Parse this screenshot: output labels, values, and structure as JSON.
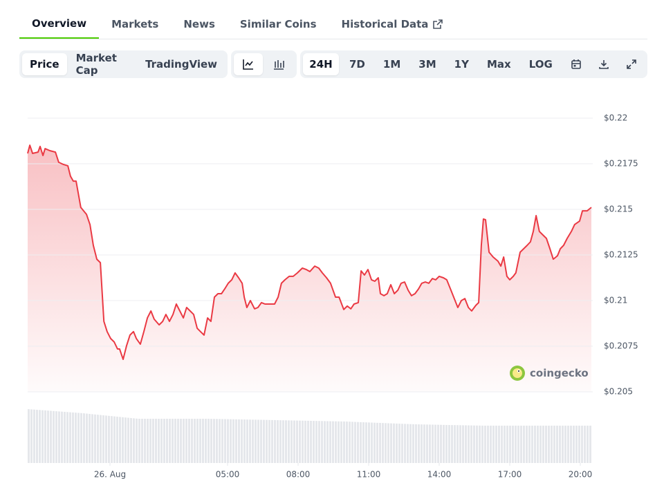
{
  "tabs": [
    "Overview",
    "Markets",
    "News",
    "Similar Coins",
    "Historical Data"
  ],
  "active_tab": 0,
  "chart_views": [
    "Price",
    "Market Cap",
    "TradingView"
  ],
  "active_view": 0,
  "ranges": [
    "24H",
    "7D",
    "1M",
    "3M",
    "1Y",
    "Max",
    "LOG"
  ],
  "active_range": 0,
  "watermark": "coingecko",
  "chart_data": {
    "type": "line",
    "color": "#ea3943",
    "grid": true,
    "xlim": [
      -3.5,
      20.5
    ],
    "xticks": [
      {
        "value": 0,
        "label": "26. Aug"
      },
      {
        "value": 5,
        "label": "05:00"
      },
      {
        "value": 8,
        "label": "08:00"
      },
      {
        "value": 11,
        "label": "11:00"
      },
      {
        "value": 14,
        "label": "14:00"
      },
      {
        "value": 17,
        "label": "17:00"
      },
      {
        "value": 20,
        "label": "20:00"
      }
    ],
    "ylim": [
      0.205,
      0.22
    ],
    "yticks": [
      {
        "value": 0.22,
        "label": "$0.22"
      },
      {
        "value": 0.2175,
        "label": "$0.2175"
      },
      {
        "value": 0.215,
        "label": "$0.215"
      },
      {
        "value": 0.2125,
        "label": "$0.2125"
      },
      {
        "value": 0.21,
        "label": "$0.21"
      },
      {
        "value": 0.2075,
        "label": "$0.2075"
      },
      {
        "value": 0.205,
        "label": "$0.205"
      }
    ],
    "x": [
      -3.5,
      -3.41,
      -3.29,
      -3.06,
      -2.97,
      -2.85,
      -2.76,
      -2.56,
      -2.32,
      -2.18,
      -1.97,
      -1.79,
      -1.68,
      -1.56,
      -1.44,
      -1.24,
      -1.0,
      -0.85,
      -0.71,
      -0.56,
      -0.41,
      -0.26,
      -0.12,
      0.03,
      0.18,
      0.32,
      0.41,
      0.56,
      0.71,
      0.85,
      1.0,
      1.12,
      1.29,
      1.44,
      1.59,
      1.74,
      1.88,
      2.09,
      2.24,
      2.38,
      2.53,
      2.68,
      2.82,
      2.97,
      3.12,
      3.26,
      3.41,
      3.56,
      3.71,
      3.85,
      4.0,
      4.15,
      4.29,
      4.44,
      4.59,
      4.74,
      4.88,
      5.03,
      5.18,
      5.32,
      5.47,
      5.62,
      5.71,
      5.82,
      5.97,
      6.15,
      6.29,
      6.44,
      6.59,
      6.79,
      7.0,
      7.15,
      7.29,
      7.44,
      7.62,
      7.79,
      7.97,
      8.18,
      8.35,
      8.5,
      8.71,
      8.88,
      9.03,
      9.21,
      9.38,
      9.59,
      9.74,
      9.94,
      10.09,
      10.24,
      10.38,
      10.56,
      10.68,
      10.82,
      10.97,
      11.12,
      11.26,
      11.41,
      11.5,
      11.65,
      11.79,
      11.94,
      12.09,
      12.24,
      12.38,
      12.53,
      12.68,
      12.82,
      12.97,
      13.12,
      13.26,
      13.41,
      13.56,
      13.71,
      13.85,
      14.0,
      14.18,
      14.32,
      14.5,
      14.65,
      14.79,
      14.94,
      15.09,
      15.24,
      15.38,
      15.56,
      15.68,
      15.79,
      15.88,
      15.97,
      16.12,
      16.29,
      16.5,
      16.62,
      16.74,
      16.88,
      17.0,
      17.15,
      17.26,
      17.44,
      17.59,
      17.74,
      17.88,
      18.0,
      18.12,
      18.26,
      18.41,
      18.56,
      18.71,
      18.85,
      19.03,
      19.15,
      19.29,
      19.44,
      19.62,
      19.76,
      19.97,
      20.09,
      20.29,
      20.47
    ],
    "values": [
      0.21807,
      0.21852,
      0.21807,
      0.21814,
      0.21845,
      0.21795,
      0.21833,
      0.21822,
      0.21814,
      0.21758,
      0.21746,
      0.21739,
      0.21682,
      0.21655,
      0.21655,
      0.21511,
      0.21473,
      0.21417,
      0.21303,
      0.21227,
      0.21208,
      0.20886,
      0.2083,
      0.20792,
      0.20773,
      0.20735,
      0.20735,
      0.20678,
      0.20754,
      0.20811,
      0.2083,
      0.20792,
      0.20761,
      0.2083,
      0.20905,
      0.20943,
      0.20898,
      0.20867,
      0.20886,
      0.20924,
      0.20886,
      0.20924,
      0.20981,
      0.20943,
      0.20905,
      0.20962,
      0.20943,
      0.20924,
      0.20848,
      0.2083,
      0.20811,
      0.20905,
      0.20886,
      0.21019,
      0.21038,
      0.21038,
      0.21064,
      0.21095,
      0.21114,
      0.21152,
      0.21125,
      0.21095,
      0.21019,
      0.20962,
      0.21,
      0.20955,
      0.20962,
      0.20989,
      0.20981,
      0.20981,
      0.20981,
      0.21019,
      0.21095,
      0.21114,
      0.21133,
      0.21133,
      0.21152,
      0.21178,
      0.2117,
      0.21159,
      0.21189,
      0.21178,
      0.21152,
      0.21125,
      0.21095,
      0.21019,
      0.21019,
      0.20951,
      0.2097,
      0.20955,
      0.20981,
      0.20989,
      0.21163,
      0.2114,
      0.2117,
      0.21114,
      0.21106,
      0.21125,
      0.21038,
      0.21027,
      0.21038,
      0.21087,
      0.21038,
      0.21057,
      0.21095,
      0.21102,
      0.21057,
      0.21027,
      0.21038,
      0.21064,
      0.21095,
      0.21102,
      0.21095,
      0.21121,
      0.21114,
      0.21133,
      0.21125,
      0.21114,
      0.21057,
      0.21008,
      0.20962,
      0.21,
      0.21011,
      0.20962,
      0.20943,
      0.20974,
      0.20989,
      0.21303,
      0.21447,
      0.21443,
      0.21265,
      0.21239,
      0.21216,
      0.21189,
      0.21239,
      0.21133,
      0.21114,
      0.21133,
      0.21152,
      0.21265,
      0.21284,
      0.21303,
      0.21322,
      0.21379,
      0.21466,
      0.21379,
      0.2136,
      0.21341,
      0.21284,
      0.21227,
      0.21246,
      0.21284,
      0.21303,
      0.21341,
      0.21379,
      0.21417,
      0.21436,
      0.21492,
      0.21492,
      0.21511
    ]
  }
}
